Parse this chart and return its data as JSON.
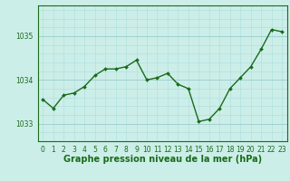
{
  "x": [
    0,
    1,
    2,
    3,
    4,
    5,
    6,
    7,
    8,
    9,
    10,
    11,
    12,
    13,
    14,
    15,
    16,
    17,
    18,
    19,
    20,
    21,
    22,
    23
  ],
  "y": [
    1033.55,
    1033.35,
    1033.65,
    1033.7,
    1033.85,
    1034.1,
    1034.25,
    1034.25,
    1034.3,
    1034.45,
    1034.0,
    1034.05,
    1034.15,
    1033.9,
    1033.8,
    1033.05,
    1033.1,
    1033.35,
    1033.8,
    1034.05,
    1034.3,
    1034.7,
    1035.15,
    1035.1
  ],
  "line_color": "#1a6b1a",
  "marker": "D",
  "marker_size": 2.0,
  "bg_color": "#cceee8",
  "grid_minor_color": "#aadddd",
  "grid_major_color": "#99cccc",
  "ylabel_ticks": [
    1033,
    1034,
    1035
  ],
  "xlabel_label": "Graphe pression niveau de la mer (hPa)",
  "xlabel_fontsize": 7,
  "xlim": [
    -0.5,
    23.5
  ],
  "ylim": [
    1032.6,
    1035.7
  ],
  "xtick_labels": [
    "0",
    "1",
    "2",
    "3",
    "4",
    "5",
    "6",
    "7",
    "8",
    "9",
    "10",
    "11",
    "12",
    "13",
    "14",
    "15",
    "16",
    "17",
    "18",
    "19",
    "20",
    "21",
    "22",
    "23"
  ],
  "line_width": 1.0,
  "axis_color": "#1a6b1a",
  "tick_fontsize": 5.5,
  "xlabel_fontweight": "bold"
}
